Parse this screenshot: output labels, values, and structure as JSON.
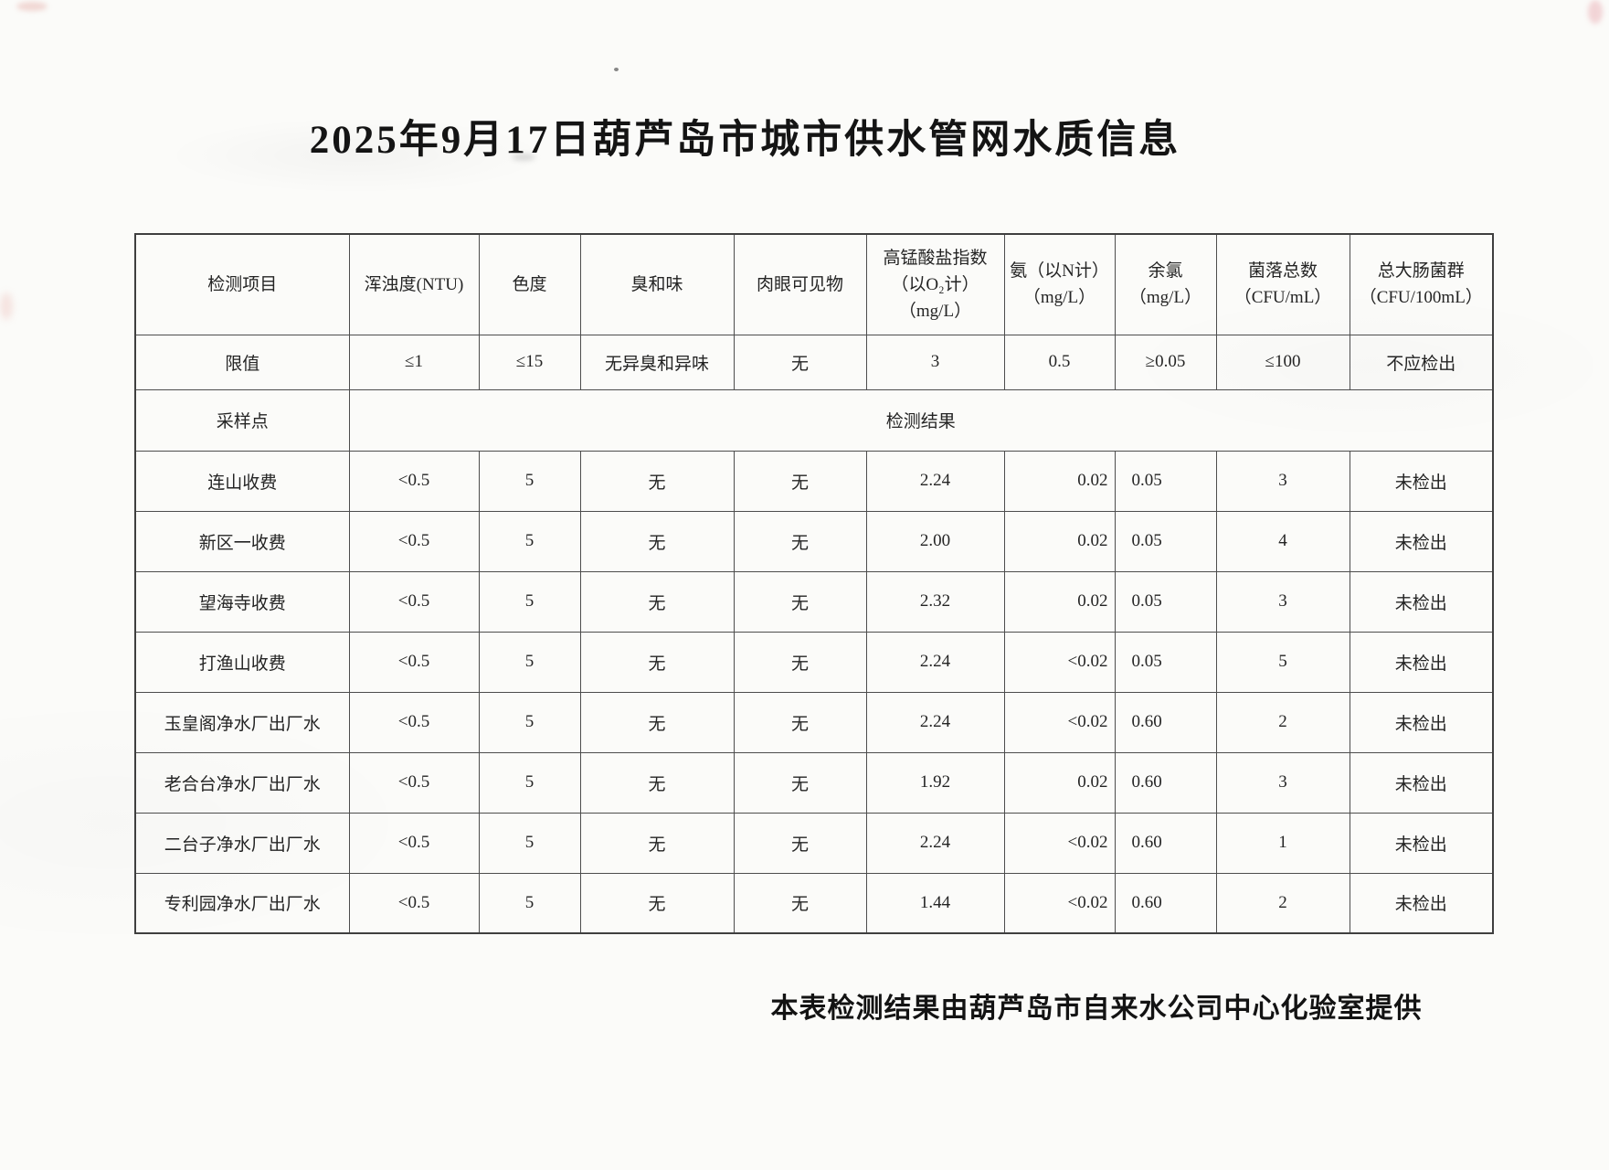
{
  "page": {
    "title": "2025年9月17日葫芦岛市城市供水管网水质信息",
    "footer": "本表检测结果由葫芦岛市自来水公司中心化验室提供"
  },
  "colors": {
    "ink": "#1f1f1f",
    "table_border": "#4d4d4d",
    "paper": "#fbfbf9"
  },
  "table": {
    "columns": [
      {
        "lines": [
          "检测项目"
        ]
      },
      {
        "lines": [
          "浑浊度(NTU)"
        ]
      },
      {
        "lines": [
          "色度"
        ]
      },
      {
        "lines": [
          "臭和味"
        ]
      },
      {
        "lines": [
          "肉眼可见物"
        ]
      },
      {
        "lines": [
          "高锰酸盐指数",
          "（以O₂计）",
          "（mg/L）"
        ]
      },
      {
        "lines": [
          "氨（以N计）",
          "（mg/L）"
        ]
      },
      {
        "lines": [
          "余氯",
          "（mg/L）"
        ]
      },
      {
        "lines": [
          "菌落总数",
          "（CFU/mL）"
        ]
      },
      {
        "lines": [
          "总大肠菌群",
          "（CFU/100mL）"
        ]
      }
    ],
    "limit_row": {
      "label": "限值",
      "values": [
        "≤1",
        "≤15",
        "无异臭和异味",
        "无",
        "3",
        "0.5",
        "≥0.05",
        "≤100",
        "不应检出"
      ]
    },
    "section_row": {
      "label": "采样点",
      "span_label": "检测结果"
    },
    "rows": [
      {
        "site": "连山收费",
        "values": [
          "<0.5",
          "5",
          "无",
          "无",
          "2.24",
          "0.02",
          "0.05",
          "3",
          "未检出"
        ]
      },
      {
        "site": "新区一收费",
        "values": [
          "<0.5",
          "5",
          "无",
          "无",
          "2.00",
          "0.02",
          "0.05",
          "4",
          "未检出"
        ]
      },
      {
        "site": "望海寺收费",
        "values": [
          "<0.5",
          "5",
          "无",
          "无",
          "2.32",
          "0.02",
          "0.05",
          "3",
          "未检出"
        ]
      },
      {
        "site": "打渔山收费",
        "values": [
          "<0.5",
          "5",
          "无",
          "无",
          "2.24",
          "<0.02",
          "0.05",
          "5",
          "未检出"
        ]
      },
      {
        "site": "玉皇阁净水厂出厂水",
        "values": [
          "<0.5",
          "5",
          "无",
          "无",
          "2.24",
          "<0.02",
          "0.60",
          "2",
          "未检出"
        ]
      },
      {
        "site": "老合台净水厂出厂水",
        "values": [
          "<0.5",
          "5",
          "无",
          "无",
          "1.92",
          "0.02",
          "0.60",
          "3",
          "未检出"
        ]
      },
      {
        "site": "二台子净水厂出厂水",
        "values": [
          "<0.5",
          "5",
          "无",
          "无",
          "2.24",
          "<0.02",
          "0.60",
          "1",
          "未检出"
        ]
      },
      {
        "site": "专利园净水厂出厂水",
        "values": [
          "<0.5",
          "5",
          "无",
          "无",
          "1.44",
          "<0.02",
          "0.60",
          "2",
          "未检出"
        ]
      }
    ]
  }
}
